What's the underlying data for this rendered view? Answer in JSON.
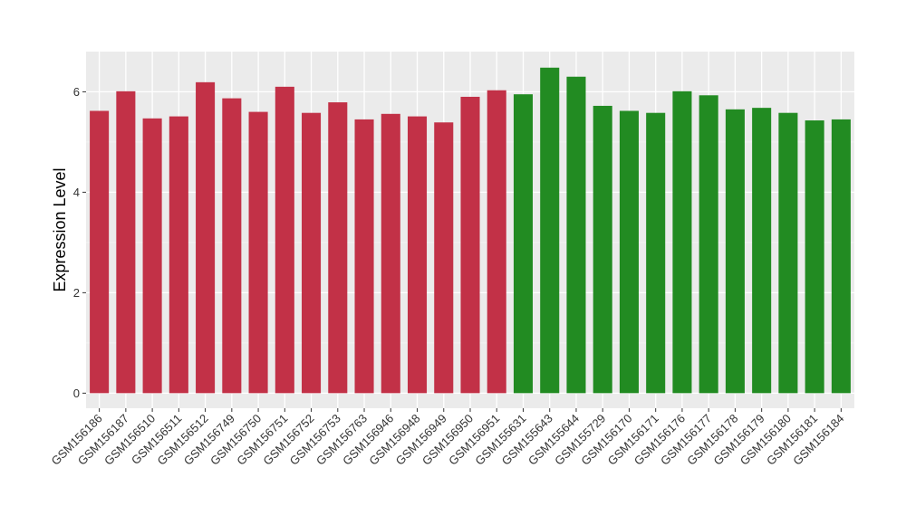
{
  "chart_data": {
    "type": "bar",
    "ylabel": "Expression Level",
    "xlabel": "",
    "ylim": [
      -0.3,
      6.8
    ],
    "yticks": [
      0,
      2,
      4,
      6
    ],
    "grid": true,
    "background": "#EBEBEB",
    "categories": [
      "GSM156186",
      "GSM156187",
      "GSM156510",
      "GSM156511",
      "GSM156512",
      "GSM156749",
      "GSM156750",
      "GSM156751",
      "GSM156752",
      "GSM156753",
      "GSM156763",
      "GSM156946",
      "GSM156948",
      "GSM156949",
      "GSM156950",
      "GSM156951",
      "GSM155631",
      "GSM155643",
      "GSM155644",
      "GSM155729",
      "GSM156170",
      "GSM156171",
      "GSM156176",
      "GSM156177",
      "GSM156178",
      "GSM156179",
      "GSM156180",
      "GSM156181",
      "GSM156184"
    ],
    "values": [
      5.62,
      6.01,
      5.47,
      5.51,
      6.19,
      5.87,
      5.6,
      6.1,
      5.58,
      5.79,
      5.45,
      5.56,
      5.51,
      5.39,
      5.9,
      6.03,
      5.95,
      6.48,
      6.3,
      5.72,
      5.62,
      5.58,
      6.01,
      5.93,
      5.65,
      5.68,
      5.58,
      5.43,
      5.45
    ],
    "bar_colors": [
      "#C23147",
      "#C23147",
      "#C23147",
      "#C23147",
      "#C23147",
      "#C23147",
      "#C23147",
      "#C23147",
      "#C23147",
      "#C23147",
      "#C23147",
      "#C23147",
      "#C23147",
      "#C23147",
      "#C23147",
      "#C23147",
      "#228B22",
      "#228B22",
      "#228B22",
      "#228B22",
      "#228B22",
      "#228B22",
      "#228B22",
      "#228B22",
      "#228B22",
      "#228B22",
      "#228B22",
      "#228B22",
      "#228B22"
    ]
  }
}
